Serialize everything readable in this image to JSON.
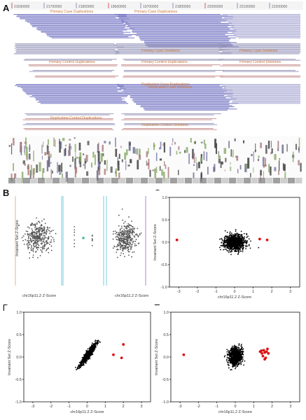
{
  "figure": {
    "letters": [
      "A",
      "B",
      "C",
      "D",
      "E"
    ]
  },
  "panelA": {
    "ruler_labels": [
      "21690000",
      "21700000",
      "21800000",
      "19600000",
      "19700000",
      "21800000",
      "22000000",
      "22100000",
      "22200000"
    ],
    "track_labels": [
      "Primary Case Duplications",
      "Primary Case Duplications",
      "Primary Case Deletions",
      "Primary Case Deletions",
      "Primary Control Duplications",
      "Primary Control Duplications",
      "Primary Control Deletions",
      "Replication Case Duplications",
      "Replication Case Deletions",
      "Replication Control Duplications",
      "Replication Control Deletions"
    ]
  },
  "chart_data": [
    {
      "panel": "C",
      "type": "scatter",
      "xlabel": "chr16p11.2 Z-Score",
      "ylabel": "Invariant Set Z-Score",
      "xlim": [
        -3.5,
        3.5
      ],
      "ylim": [
        -1.0,
        1.0
      ],
      "xticks": [
        -3,
        -2,
        -1,
        0,
        1,
        2,
        3
      ],
      "yticks": [
        -1.0,
        -0.5,
        0.0,
        0.5,
        1.0
      ],
      "cloud": {
        "cx": 0.0,
        "cy": 0.0,
        "sx": 0.28,
        "sy": 0.09,
        "corr": 0.05,
        "n": 900,
        "color": "#000000"
      },
      "highlight": {
        "color": "#dd1111",
        "points": [
          [
            -3.1,
            0.05
          ],
          [
            1.35,
            0.07
          ],
          [
            1.75,
            0.05
          ]
        ]
      }
    },
    {
      "panel": "D",
      "type": "scatter",
      "xlabel": "chr16p11.2 Z-Score",
      "ylabel": "Invariant Set Z-Score",
      "xlim": [
        -3.5,
        3.5
      ],
      "ylim": [
        -1.0,
        1.0
      ],
      "xticks": [
        -3,
        -2,
        -1,
        0,
        1,
        2,
        3
      ],
      "yticks": [
        -1.0,
        -0.5,
        0.0,
        0.5,
        1.0
      ],
      "cloud": {
        "cx": 0.05,
        "cy": 0.05,
        "sx": 0.22,
        "sy": 0.12,
        "corr": 0.93,
        "n": 900,
        "color": "#000000"
      },
      "highlight": {
        "color": "#dd1111",
        "points": [
          [
            1.45,
            0.05
          ],
          [
            1.9,
            -0.02
          ],
          [
            2.0,
            0.28
          ]
        ]
      }
    },
    {
      "panel": "E",
      "type": "scatter",
      "xlabel": "chr16p11.2 Z-Score",
      "ylabel": "Invariant Set Z-Score",
      "xlim": [
        -3.5,
        3.5
      ],
      "ylim": [
        -1.0,
        1.0
      ],
      "xticks": [
        -3,
        -2,
        -1,
        0,
        1,
        2,
        3
      ],
      "yticks": [
        -1.0,
        -0.5,
        0.0,
        0.5,
        1.0
      ],
      "cloud": {
        "cx": 0.0,
        "cy": 0.02,
        "sx": 0.18,
        "sy": 0.1,
        "corr": 0.1,
        "n": 800,
        "color": "#000000"
      },
      "highlight": {
        "color": "#dd1111",
        "points": [
          [
            -2.8,
            0.05
          ],
          [
            1.35,
            0.12
          ],
          [
            1.45,
            0.08
          ],
          [
            1.55,
            0.15
          ],
          [
            1.6,
            0.1
          ],
          [
            1.5,
            0.02
          ],
          [
            1.65,
            -0.02
          ],
          [
            1.7,
            0.12
          ],
          [
            1.8,
            0.08
          ],
          [
            1.6,
            -0.05
          ],
          [
            1.75,
            0.18
          ],
          [
            1.42,
            0.14
          ]
        ]
      }
    },
    {
      "panel": "B",
      "type": "scatter",
      "xlabel": "chr16p11.2 Z-Score",
      "ylabel": "Invariant Set Z-Score",
      "subpanels": 3,
      "xlim": [
        -0.25,
        0.25
      ],
      "ylim": [
        -0.6,
        0.6
      ],
      "cloud": {
        "cx": 0.0,
        "cy": 0.0,
        "sx": 0.07,
        "sy": 0.12,
        "corr": 0.1,
        "n": 350,
        "color": "#555555"
      },
      "highlight": {
        "color": "#44bb88",
        "points": [
          [
            0.0,
            0.0
          ]
        ]
      }
    }
  ]
}
